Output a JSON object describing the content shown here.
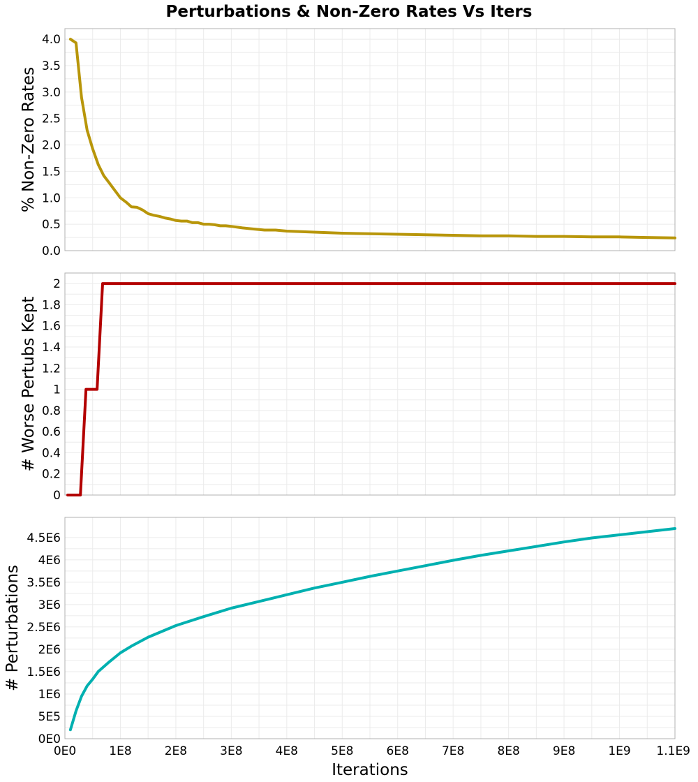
{
  "title": "Perturbations & Non-Zero Rates Vs Iters",
  "xlabel": "Iterations",
  "colors": {
    "grid": "#ebebeb",
    "frame": "#b0b0b0"
  },
  "chart_data": [
    {
      "type": "line",
      "ylabel": "% Non-Zero Rates",
      "xlim": [
        0,
        1100000000
      ],
      "ylim": [
        0,
        4.2
      ],
      "grid": true,
      "yticks": [
        0.0,
        0.5,
        1.0,
        1.5,
        2.0,
        2.5,
        3.0,
        3.5,
        4.0
      ],
      "ytick_labels": [
        "0.0",
        "0.5",
        "1.0",
        "1.5",
        "2.0",
        "2.5",
        "3.0",
        "3.5",
        "4.0"
      ],
      "series": [
        {
          "color": "#b8960a",
          "x": [
            10000000,
            20000000,
            30000000,
            40000000,
            50000000,
            60000000,
            70000000,
            80000000,
            90000000,
            100000000,
            110000000,
            120000000,
            130000000,
            140000000,
            150000000,
            160000000,
            170000000,
            180000000,
            190000000,
            200000000,
            210000000,
            220000000,
            230000000,
            240000000,
            250000000,
            260000000,
            270000000,
            280000000,
            290000000,
            300000000,
            320000000,
            340000000,
            360000000,
            380000000,
            400000000,
            450000000,
            500000000,
            550000000,
            600000000,
            650000000,
            700000000,
            750000000,
            800000000,
            850000000,
            900000000,
            950000000,
            1000000000,
            1050000000,
            1100000000
          ],
          "y": [
            4.0,
            3.93,
            2.9,
            2.28,
            1.93,
            1.63,
            1.42,
            1.28,
            1.14,
            1.0,
            0.92,
            0.83,
            0.82,
            0.77,
            0.7,
            0.67,
            0.65,
            0.62,
            0.6,
            0.57,
            0.56,
            0.56,
            0.53,
            0.53,
            0.5,
            0.5,
            0.49,
            0.47,
            0.47,
            0.46,
            0.43,
            0.41,
            0.39,
            0.39,
            0.37,
            0.35,
            0.33,
            0.32,
            0.31,
            0.3,
            0.29,
            0.28,
            0.28,
            0.27,
            0.27,
            0.26,
            0.26,
            0.25,
            0.24
          ]
        }
      ]
    },
    {
      "type": "line",
      "ylabel": "# Worse Pertubs Kept",
      "xlim": [
        0,
        1100000000
      ],
      "ylim": [
        0,
        2.1
      ],
      "grid": true,
      "yticks": [
        0,
        0.2,
        0.4,
        0.6,
        0.8,
        1.0,
        1.2,
        1.4,
        1.6,
        1.8,
        2.0
      ],
      "ytick_labels": [
        "0",
        "0.2",
        "0.4",
        "0.6",
        "0.8",
        "1",
        "1.2",
        "1.4",
        "1.6",
        "1.8",
        "2"
      ],
      "series": [
        {
          "color": "#b30000",
          "x": [
            5000000,
            28000000,
            38000000,
            58000000,
            68000000,
            1100000000
          ],
          "y": [
            0,
            0,
            1,
            1,
            2,
            2
          ]
        }
      ]
    },
    {
      "type": "line",
      "ylabel": "# Perturbations",
      "xlim": [
        0,
        1100000000
      ],
      "ylim": [
        0,
        4950000
      ],
      "grid": true,
      "yticks": [
        0,
        500000,
        1000000,
        1500000,
        2000000,
        2500000,
        3000000,
        3500000,
        4000000,
        4500000
      ],
      "ytick_labels": [
        "0E0",
        "5E5",
        "1E6",
        "1.5E6",
        "2E6",
        "2.5E6",
        "3E6",
        "3.5E6",
        "4E6",
        "4.5E6"
      ],
      "xticks": [
        0,
        100000000,
        200000000,
        300000000,
        400000000,
        500000000,
        600000000,
        700000000,
        800000000,
        900000000,
        1000000000,
        1100000000
      ],
      "xtick_labels": [
        "0E0",
        "1E8",
        "2E8",
        "3E8",
        "4E8",
        "5E8",
        "6E8",
        "7E8",
        "8E8",
        "9E8",
        "1E9",
        "1.1E9"
      ],
      "series": [
        {
          "color": "#00b0b0",
          "x": [
            10000000,
            20000000,
            30000000,
            40000000,
            50000000,
            60000000,
            80000000,
            100000000,
            120000000,
            150000000,
            200000000,
            250000000,
            300000000,
            350000000,
            400000000,
            450000000,
            500000000,
            550000000,
            600000000,
            650000000,
            700000000,
            750000000,
            800000000,
            850000000,
            900000000,
            950000000,
            1000000000,
            1050000000,
            1100000000
          ],
          "y": [
            200000,
            620000,
            950000,
            1180000,
            1330000,
            1500000,
            1720000,
            1920000,
            2070000,
            2270000,
            2530000,
            2730000,
            2920000,
            3070000,
            3220000,
            3370000,
            3500000,
            3630000,
            3750000,
            3870000,
            3990000,
            4100000,
            4200000,
            4300000,
            4400000,
            4490000,
            4560000,
            4630000,
            4700000
          ]
        }
      ]
    }
  ]
}
